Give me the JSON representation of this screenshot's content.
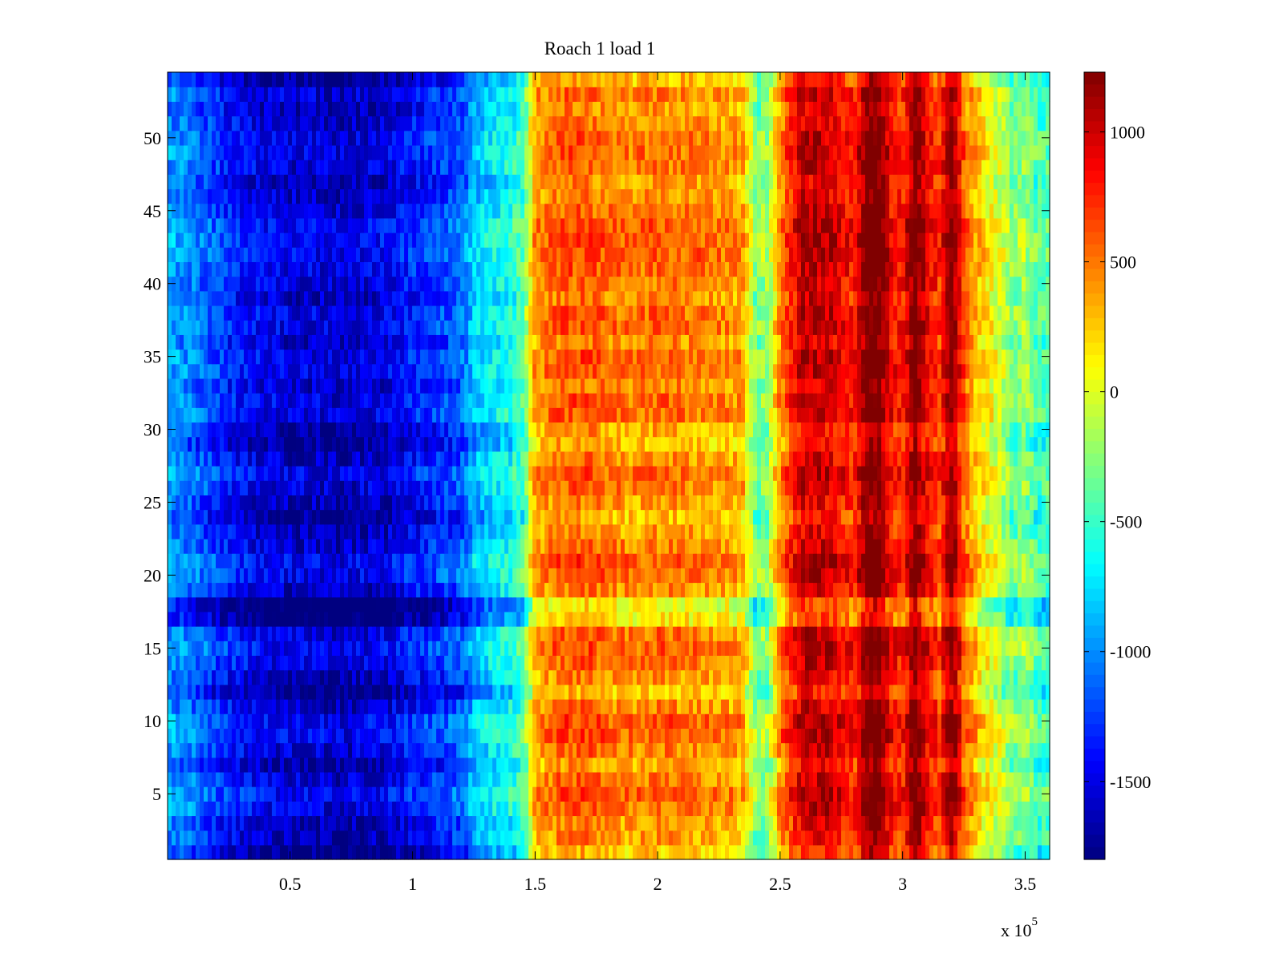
{
  "chart_data": {
    "type": "heatmap",
    "title": "Roach 1 load 1",
    "xlabel": "",
    "ylabel": "",
    "x_multiplier_label": "x 10",
    "x_multiplier_exponent": "5",
    "xlim": [
      0.0,
      3.6
    ],
    "ylim": [
      0.5,
      54.5
    ],
    "x_ticks": [
      0.5,
      1,
      1.5,
      2,
      2.5,
      3,
      3.5
    ],
    "x_tick_labels": [
      "0.5",
      "1",
      "1.5",
      "2",
      "2.5",
      "3",
      "3.5"
    ],
    "y_ticks": [
      5,
      10,
      15,
      20,
      25,
      30,
      35,
      40,
      45,
      50
    ],
    "y_tick_labels": [
      "5",
      "10",
      "15",
      "20",
      "25",
      "30",
      "35",
      "40",
      "45",
      "50"
    ],
    "colormap": "jet",
    "colorbar": {
      "clim": [
        -1800,
        1230
      ],
      "ticks": [
        1000,
        500,
        0,
        -500,
        -1000,
        -1500
      ],
      "tick_labels": [
        "1000",
        "500",
        "0",
        "-500",
        "-1000",
        "-1500"
      ],
      "placement": "right"
    },
    "rows": 54,
    "column_profile": {
      "x": [
        0.0,
        0.1,
        0.2,
        0.3,
        0.4,
        0.5,
        0.6,
        0.7,
        0.8,
        0.9,
        1.0,
        1.1,
        1.2,
        1.25,
        1.3,
        1.4,
        1.45,
        1.5,
        1.6,
        1.7,
        1.8,
        1.9,
        2.0,
        2.1,
        2.2,
        2.3,
        2.35,
        2.4,
        2.45,
        2.5,
        2.55,
        2.6,
        2.7,
        2.8,
        2.85,
        2.9,
        2.95,
        3.0,
        3.05,
        3.1,
        3.15,
        3.2,
        3.25,
        3.3,
        3.35,
        3.4,
        3.45,
        3.5,
        3.55,
        3.6
      ],
      "value": [
        -1050,
        -1150,
        -1350,
        -1500,
        -1600,
        -1650,
        -1650,
        -1700,
        -1650,
        -1600,
        -1450,
        -1350,
        -1250,
        -950,
        -850,
        -700,
        -550,
        300,
        450,
        500,
        400,
        350,
        420,
        380,
        350,
        300,
        250,
        -400,
        -300,
        350,
        700,
        950,
        900,
        650,
        1150,
        1250,
        750,
        650,
        1200,
        800,
        600,
        1150,
        500,
        200,
        0,
        -150,
        -400,
        -300,
        -550,
        -500
      ]
    },
    "row_profile": {
      "rows": [
        1,
        2,
        3,
        4,
        5,
        6,
        7,
        8,
        9,
        10,
        11,
        12,
        13,
        14,
        15,
        16,
        17,
        18,
        19,
        20,
        21,
        22,
        23,
        24,
        25,
        26,
        27,
        28,
        29,
        30,
        31,
        32,
        33,
        34,
        35,
        36,
        37,
        38,
        39,
        40,
        41,
        42,
        43,
        44,
        45,
        46,
        47,
        48,
        49,
        50,
        51,
        52,
        53,
        54
      ],
      "offset": [
        -150,
        0,
        0,
        150,
        200,
        100,
        -50,
        100,
        200,
        200,
        50,
        -150,
        0,
        120,
        180,
        120,
        -250,
        -300,
        50,
        180,
        200,
        80,
        0,
        -100,
        0,
        100,
        150,
        50,
        -100,
        -50,
        150,
        150,
        50,
        150,
        150,
        50,
        150,
        150,
        50,
        100,
        150,
        200,
        200,
        200,
        100,
        50,
        0,
        100,
        150,
        120,
        50,
        0,
        100,
        -100
      ]
    }
  }
}
